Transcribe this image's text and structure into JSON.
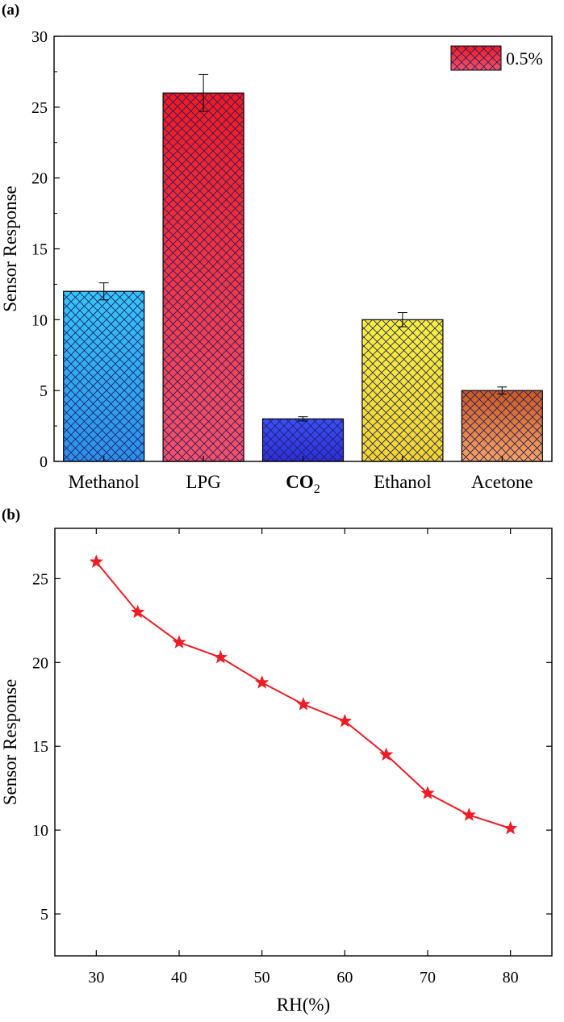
{
  "chart_data": [
    {
      "type": "bar",
      "panel_label": "(a)",
      "categories": [
        "Methanol",
        "LPG",
        "CO",
        "Ethanol",
        "Acetone"
      ],
      "category_subscripts": [
        "",
        "",
        "2",
        "",
        ""
      ],
      "values": [
        12,
        26,
        3,
        10,
        5
      ],
      "errors": [
        0.6,
        1.3,
        0.15,
        0.5,
        0.25
      ],
      "colors": [
        {
          "top": "#36c6f4",
          "bottom": "#2d8fe6"
        },
        {
          "top": "#f21a1e",
          "bottom": "#f45268"
        },
        {
          "top": "#3c50f2",
          "bottom": "#2f2fd4"
        },
        {
          "top": "#f8f03a",
          "bottom": "#f2d42c"
        },
        {
          "top": "#cc5a1e",
          "bottom": "#f7a35e"
        }
      ],
      "legend": {
        "label": "0.5%",
        "top": "#f21a1e",
        "bottom": "#f45268",
        "position": "top-right"
      },
      "ylabel": "Sensor Response",
      "xlabel": "",
      "ylim": [
        0,
        30
      ],
      "yticks": [
        0,
        5,
        10,
        15,
        20,
        25,
        30
      ]
    },
    {
      "type": "line",
      "panel_label": "(b)",
      "x": [
        30,
        35,
        40,
        45,
        50,
        55,
        60,
        65,
        70,
        75,
        80
      ],
      "y": [
        26.0,
        23.0,
        21.2,
        20.3,
        18.8,
        17.5,
        16.5,
        14.5,
        12.2,
        10.9,
        10.1
      ],
      "marker": "star",
      "color": "#ee1c24",
      "xlabel": "RH(%)",
      "ylabel": "Sensor Response",
      "xlim": [
        25,
        85
      ],
      "ylim": [
        2.5,
        28
      ],
      "xticks": [
        30,
        40,
        50,
        60,
        70,
        80
      ],
      "yticks": [
        5,
        10,
        15,
        20,
        25
      ]
    }
  ]
}
